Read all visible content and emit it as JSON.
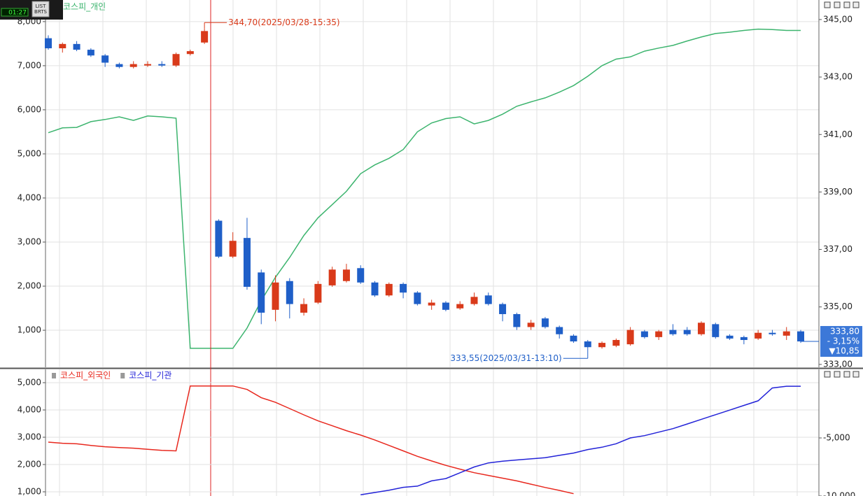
{
  "widget": {
    "time": "01:27",
    "button_lines": [
      "LIST",
      "BRTS"
    ]
  },
  "chart_data": [
    {
      "type": "candlestick",
      "candle_axis": "y2",
      "up_color": "#d93a1a",
      "down_color": "#1f5fc8",
      "open": [
        344.35,
        344.0,
        344.15,
        343.95,
        343.75,
        343.45,
        343.35,
        343.4,
        343.45,
        343.4,
        343.8,
        344.2,
        338.0,
        336.75,
        337.4,
        336.2,
        334.9,
        335.9,
        334.8,
        335.15,
        335.75,
        335.9,
        336.35,
        335.85,
        335.4,
        335.8,
        335.5,
        335.05,
        335.15,
        334.95,
        335.1,
        335.4,
        335.1,
        334.75,
        334.3,
        334.6,
        334.3,
        334.0,
        333.8,
        333.6,
        333.65,
        333.7,
        334.15,
        333.95,
        334.2,
        334.2,
        334.05,
        334.4,
        334.0,
        333.95,
        333.9,
        334.1,
        334.0,
        334.15
      ],
      "high": [
        344.45,
        344.2,
        344.25,
        344.0,
        343.8,
        343.5,
        343.55,
        343.55,
        343.55,
        343.85,
        343.95,
        344.7,
        338.05,
        337.6,
        338.1,
        336.3,
        336.1,
        336.0,
        335.3,
        335.9,
        336.4,
        336.5,
        336.45,
        335.9,
        335.85,
        335.85,
        335.55,
        335.25,
        335.2,
        335.2,
        335.5,
        335.5,
        335.15,
        334.8,
        334.55,
        334.65,
        334.35,
        334.05,
        333.85,
        333.8,
        333.9,
        334.3,
        334.2,
        334.2,
        334.4,
        334.3,
        334.5,
        334.45,
        334.05,
        334.0,
        334.2,
        334.2,
        334.3,
        334.2
      ],
      "low": [
        343.95,
        343.85,
        343.9,
        343.7,
        343.35,
        343.3,
        343.3,
        343.35,
        343.35,
        343.35,
        343.75,
        344.15,
        336.7,
        336.7,
        335.6,
        334.4,
        334.5,
        334.6,
        334.7,
        335.1,
        335.7,
        335.85,
        335.8,
        335.35,
        335.35,
        335.3,
        335.05,
        334.9,
        334.85,
        334.9,
        335.05,
        335.05,
        334.5,
        334.2,
        334.2,
        334.25,
        333.9,
        333.75,
        333.55,
        333.55,
        333.6,
        333.65,
        333.9,
        333.85,
        334.0,
        334.0,
        334.0,
        333.9,
        333.85,
        333.7,
        333.85,
        334.0,
        333.85,
        333.75
      ],
      "close": [
        344.0,
        344.15,
        343.95,
        343.75,
        343.5,
        343.35,
        343.45,
        343.45,
        343.4,
        343.8,
        343.9,
        344.6,
        336.75,
        337.3,
        335.7,
        334.8,
        335.85,
        335.1,
        335.1,
        335.8,
        336.3,
        336.3,
        335.85,
        335.4,
        335.8,
        335.5,
        335.1,
        335.15,
        334.9,
        335.1,
        335.35,
        335.1,
        334.75,
        334.3,
        334.45,
        334.3,
        334.05,
        333.8,
        333.6,
        333.75,
        333.85,
        334.2,
        333.95,
        334.15,
        334.05,
        334.05,
        334.45,
        333.95,
        333.9,
        333.85,
        334.1,
        334.05,
        334.15,
        333.8
      ],
      "series": [
        {
          "name": "코스피_개인",
          "color": "#3cb46e",
          "axis": "y",
          "values": [
            5480,
            5590,
            5600,
            5730,
            5780,
            5840,
            5760,
            5860,
            5840,
            5810,
            590,
            590,
            590,
            590,
            1050,
            1670,
            2200,
            2650,
            3150,
            3550,
            3850,
            4150,
            4550,
            4750,
            4900,
            5100,
            5500,
            5700,
            5800,
            5840,
            5680,
            5760,
            5900,
            6080,
            6180,
            6270,
            6400,
            6550,
            6760,
            7000,
            7150,
            7200,
            7330,
            7400,
            7460,
            7560,
            7650,
            7730,
            7760,
            7800,
            7830,
            7820,
            7800,
            7800
          ]
        }
      ],
      "ylim": [
        160,
        8490
      ],
      "yticks": [
        {
          "value": 1000,
          "label": "1,000"
        },
        {
          "value": 2000,
          "label": "2,000"
        },
        {
          "value": 3000,
          "label": "3,000"
        },
        {
          "value": 4000,
          "label": "4,000"
        },
        {
          "value": 5000,
          "label": "5,000"
        },
        {
          "value": 6000,
          "label": "6,000"
        },
        {
          "value": 7000,
          "label": "7,000"
        },
        {
          "value": 8000,
          "label": "8,000"
        }
      ],
      "y2lim": [
        332.9,
        345.68
      ],
      "y2ticks": [
        {
          "value": 333,
          "label": "333,00"
        },
        {
          "value": 335,
          "label": "335,00"
        },
        {
          "value": 337,
          "label": "337,00"
        },
        {
          "value": 339,
          "label": "339,00"
        },
        {
          "value": 341,
          "label": "341,00"
        },
        {
          "value": 343,
          "label": "343,00"
        },
        {
          "value": 345,
          "label": "345,00"
        }
      ],
      "grid": true,
      "annotations": [
        "344,70(2025/03/28-15:35)",
        "333,55(2025/03/31-13:10)"
      ],
      "last_price_box": [
        "333,80",
        "- 3,15%",
        "▼10,85"
      ]
    },
    {
      "type": "line",
      "series": [
        {
          "name": "코스피_외국인",
          "color": "#e8281e",
          "axis": "y",
          "values": [
            2820,
            2780,
            2760,
            2700,
            2650,
            2620,
            2600,
            2560,
            2520,
            2500,
            4880,
            4880,
            4880,
            4880,
            4750,
            4450,
            4280,
            4050,
            3820,
            3600,
            3420,
            3240,
            3080,
            2900,
            2700,
            2500,
            2300,
            2130,
            1970,
            1830,
            1700,
            1600,
            1500,
            1400,
            1280,
            1160,
            1050,
            930,
            null,
            null,
            null,
            null,
            null,
            null,
            null,
            null,
            null,
            null,
            null,
            null,
            null,
            null,
            null,
            null
          ]
        },
        {
          "name": "코스피_기관",
          "color": "#2323d8",
          "axis": "y2",
          "values": [
            null,
            null,
            null,
            null,
            null,
            null,
            null,
            null,
            null,
            null,
            null,
            null,
            null,
            null,
            null,
            null,
            null,
            null,
            null,
            null,
            null,
            null,
            -9900,
            -9700,
            -9500,
            -9250,
            -9150,
            -8700,
            -8500,
            -8000,
            -7500,
            -7150,
            -7000,
            -6900,
            -6800,
            -6700,
            -6500,
            -6300,
            -6000,
            -5800,
            -5500,
            -5000,
            -4800,
            -4500,
            -4200,
            -3800,
            -3400,
            -3000,
            -2600,
            -2200,
            -1800,
            -700,
            -550,
            -550
          ]
        }
      ],
      "ylim": [
        846,
        5487
      ],
      "yticks": [
        {
          "value": 1000,
          "label": "1,000"
        },
        {
          "value": 2000,
          "label": "2,000"
        },
        {
          "value": 3000,
          "label": "3,000"
        },
        {
          "value": 4000,
          "label": "4,000"
        },
        {
          "value": 5000,
          "label": "5,000"
        }
      ],
      "y2lim": [
        -10000,
        904
      ],
      "y2ticks": [
        {
          "value": -10000,
          "label": "-10,000"
        },
        {
          "value": -5000,
          "label": "-5,000"
        }
      ],
      "grid": true
    }
  ]
}
